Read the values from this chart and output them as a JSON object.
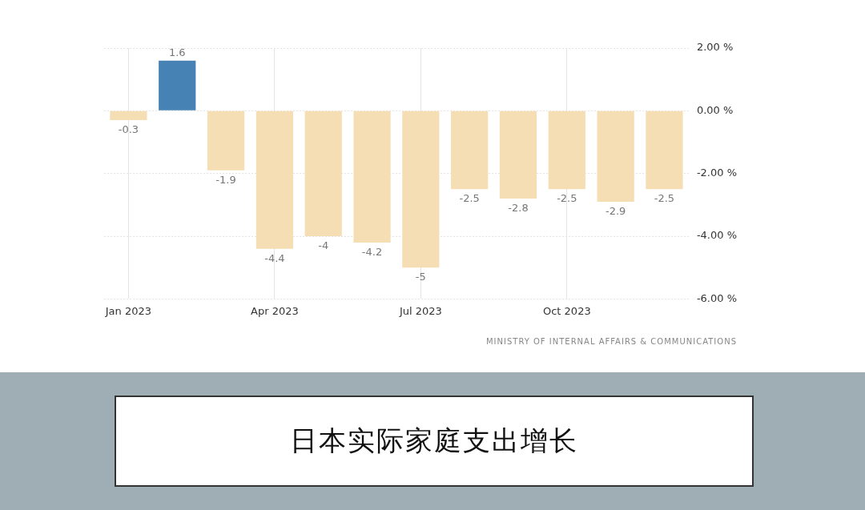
{
  "chart_data": {
    "type": "bar",
    "title": "日本实际家庭支出增长",
    "categories": [
      "Jan 2023",
      null,
      null,
      "Apr 2023",
      null,
      null,
      "Jul 2023",
      null,
      null,
      "Oct 2023",
      null,
      null
    ],
    "values": [
      -0.3,
      1.6,
      -1.9,
      -4.4,
      -4,
      -4.2,
      -5,
      -2.5,
      -2.8,
      -2.5,
      -2.9,
      -2.5
    ],
    "colors": [
      "#f5deb3",
      "#4682b4",
      "#f5deb3",
      "#f5deb3",
      "#f5deb3",
      "#f5deb3",
      "#f5deb3",
      "#f5deb3",
      "#f5deb3",
      "#f5deb3",
      "#f5deb3",
      "#f5deb3"
    ],
    "ylim": [
      -6,
      2
    ],
    "yticks": [
      {
        "value": 2,
        "label": "2.00 %"
      },
      {
        "value": 0,
        "label": "0.00 %"
      },
      {
        "value": -2,
        "label": "-2.00 %"
      },
      {
        "value": -4,
        "label": "-4.00 %"
      },
      {
        "value": -6,
        "label": "-6.00 %"
      }
    ],
    "grid": true,
    "data_labels": true,
    "annotations": [
      "MINISTRY OF INTERNAL AFFAIRS & COMMUNICATIONS"
    ]
  }
}
